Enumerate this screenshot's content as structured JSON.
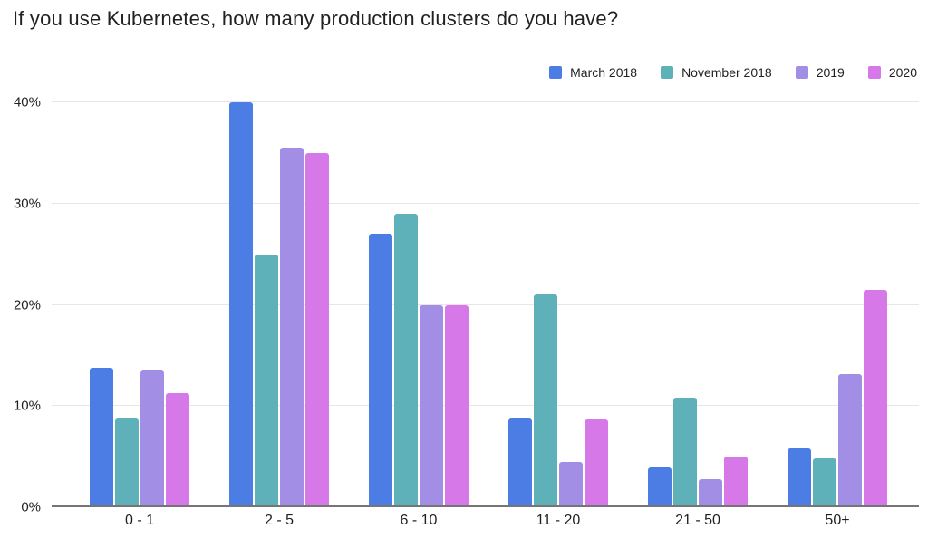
{
  "title": "If you use Kubernetes, how many production clusters do you have?",
  "chart_data": {
    "type": "bar",
    "title": "If you use Kubernetes, how many production clusters do you have?",
    "categories": [
      "0 - 1",
      "2 - 5",
      "6 - 10",
      "11 - 20",
      "21 - 50",
      "50+"
    ],
    "series": [
      {
        "name": "March 2018",
        "color": "#4c7de4",
        "values": [
          13.8,
          40.0,
          27.0,
          8.8,
          3.9,
          5.8
        ]
      },
      {
        "name": "November 2018",
        "color": "#5eb1b8",
        "values": [
          8.8,
          25.0,
          29.0,
          21.0,
          10.8,
          4.8
        ]
      },
      {
        "name": "2019",
        "color": "#a38ee5",
        "values": [
          13.5,
          35.5,
          20.0,
          4.5,
          2.8,
          13.2
        ]
      },
      {
        "name": "2020",
        "color": "#d678e8",
        "values": [
          11.3,
          35.0,
          20.0,
          8.7,
          5.0,
          21.5
        ]
      }
    ],
    "xlabel": "",
    "ylabel": "",
    "ylim": [
      0,
      40
    ],
    "yticks": [
      {
        "value": 0,
        "label": "0%"
      },
      {
        "value": 10,
        "label": "10%"
      },
      {
        "value": 20,
        "label": "20%"
      },
      {
        "value": 30,
        "label": "30%"
      },
      {
        "value": 40,
        "label": "40%"
      }
    ],
    "grid": true,
    "legend_position": "top-right",
    "colors": {
      "gridline": "#e6e6e6",
      "baseline": "#757575",
      "text": "#212121"
    }
  }
}
